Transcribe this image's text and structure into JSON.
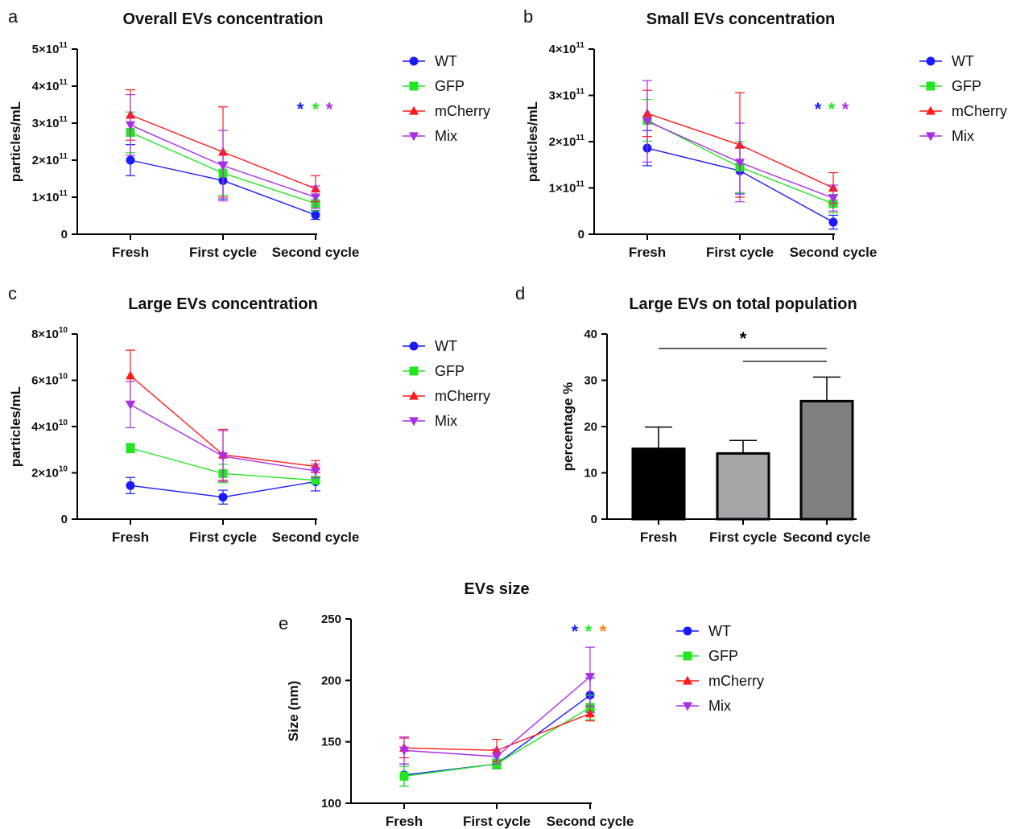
{
  "colors": {
    "WT": "#1a1aff",
    "GFP": "#22e622",
    "mCherry": "#ff1a1a",
    "Mix": "#aa2ee8",
    "star_orange": "#ff7f1a"
  },
  "chart_data": [
    {
      "panel": "a",
      "type": "line",
      "title": "Overall EVs concentration",
      "xlabel": "",
      "ylabel": "particles/mL",
      "categories": [
        "Fresh",
        "First cycle",
        "Second cycle"
      ],
      "ylim": [
        0,
        5
      ],
      "yticks": [
        {
          "v": 0,
          "base": "0",
          "exp": ""
        },
        {
          "v": 1,
          "base": "1×10",
          "exp": "11"
        },
        {
          "v": 2,
          "base": "2×10",
          "exp": "11"
        },
        {
          "v": 3,
          "base": "3×10",
          "exp": "11"
        },
        {
          "v": 4,
          "base": "4×10",
          "exp": "11"
        },
        {
          "v": 5,
          "base": "5×10",
          "exp": "11"
        }
      ],
      "series": [
        {
          "name": "WT",
          "marker": "circle",
          "values": [
            2.0,
            1.45,
            0.52
          ],
          "err": [
            0.42,
            0.5,
            0.12
          ]
        },
        {
          "name": "GFP",
          "marker": "square",
          "values": [
            2.75,
            1.65,
            0.83
          ],
          "err": [
            0.55,
            0.6,
            0.2
          ]
        },
        {
          "name": "mCherry",
          "marker": "triangle-up",
          "values": [
            3.22,
            2.22,
            1.23
          ],
          "err": [
            0.68,
            1.22,
            0.35
          ]
        },
        {
          "name": "Mix",
          "marker": "triangle-down",
          "values": [
            2.95,
            1.85,
            1.0
          ],
          "err": [
            0.82,
            0.95,
            0.3
          ]
        }
      ],
      "stars": [
        "WT",
        "GFP",
        "Mix"
      ]
    },
    {
      "panel": "b",
      "type": "line",
      "title": "Small EVs concentration",
      "xlabel": "",
      "ylabel": "particles/mL",
      "categories": [
        "Fresh",
        "First cycle",
        "Second cycle"
      ],
      "ylim": [
        0,
        4
      ],
      "yticks": [
        {
          "v": 0,
          "base": "0",
          "exp": ""
        },
        {
          "v": 1,
          "base": "1×10",
          "exp": "11"
        },
        {
          "v": 2,
          "base": "2×10",
          "exp": "11"
        },
        {
          "v": 3,
          "base": "3×10",
          "exp": "11"
        },
        {
          "v": 4,
          "base": "4×10",
          "exp": "11"
        }
      ],
      "series": [
        {
          "name": "WT",
          "marker": "circle",
          "values": [
            1.86,
            1.37,
            0.26
          ],
          "err": [
            0.38,
            0.5,
            0.15
          ]
        },
        {
          "name": "GFP",
          "marker": "square",
          "values": [
            2.46,
            1.45,
            0.66
          ],
          "err": [
            0.45,
            0.55,
            0.2
          ]
        },
        {
          "name": "mCherry",
          "marker": "triangle-up",
          "values": [
            2.61,
            1.93,
            1.0
          ],
          "err": [
            0.5,
            1.13,
            0.33
          ]
        },
        {
          "name": "Mix",
          "marker": "triangle-down",
          "values": [
            2.44,
            1.55,
            0.78
          ],
          "err": [
            0.88,
            0.85,
            0.28
          ]
        }
      ],
      "stars": [
        "WT",
        "GFP",
        "Mix"
      ]
    },
    {
      "panel": "c",
      "type": "line",
      "title": "Large EVs concentration",
      "xlabel": "",
      "ylabel": "particles/mL",
      "categories": [
        "Fresh",
        "First cycle",
        "Second cycle"
      ],
      "ylim": [
        0,
        8
      ],
      "yticks": [
        {
          "v": 0,
          "base": "0",
          "exp": ""
        },
        {
          "v": 2,
          "base": "2×10",
          "exp": "10"
        },
        {
          "v": 4,
          "base": "4×10",
          "exp": "10"
        },
        {
          "v": 6,
          "base": "6×10",
          "exp": "10"
        },
        {
          "v": 8,
          "base": "8×10",
          "exp": "10"
        }
      ],
      "series": [
        {
          "name": "WT",
          "marker": "circle",
          "values": [
            1.45,
            0.95,
            1.62
          ],
          "err": [
            0.35,
            0.3,
            0.4
          ]
        },
        {
          "name": "GFP",
          "marker": "square",
          "values": [
            3.07,
            1.97,
            1.68
          ],
          "err": [
            0.2,
            0.4,
            0.15
          ]
        },
        {
          "name": "mCherry",
          "marker": "triangle-up",
          "values": [
            6.2,
            2.78,
            2.28
          ],
          "err": [
            1.1,
            1.1,
            0.25
          ]
        },
        {
          "name": "Mix",
          "marker": "triangle-down",
          "values": [
            4.95,
            2.72,
            2.08
          ],
          "err": [
            1.0,
            1.1,
            0.3
          ]
        }
      ],
      "stars": []
    },
    {
      "panel": "d",
      "type": "bar",
      "title": "Large EVs on total population",
      "xlabel": "",
      "ylabel": "percentage %",
      "categories": [
        "Fresh",
        "First cycle",
        "Second cycle"
      ],
      "values": [
        15.2,
        14.2,
        25.5
      ],
      "err": [
        4.7,
        2.8,
        5.2
      ],
      "bar_colors": [
        "#000000",
        "#a6a6aa",
        "#808080"
      ],
      "ylim": [
        0,
        40
      ],
      "yticks": [
        {
          "v": 0,
          "base": "0",
          "exp": ""
        },
        {
          "v": 10,
          "base": "10",
          "exp": ""
        },
        {
          "v": 20,
          "base": "20",
          "exp": ""
        },
        {
          "v": 30,
          "base": "30",
          "exp": ""
        },
        {
          "v": 40,
          "base": "40",
          "exp": ""
        }
      ],
      "significance": "*"
    },
    {
      "panel": "e",
      "type": "line",
      "title": "EVs size",
      "xlabel": "",
      "ylabel": "Size (nm)",
      "categories": [
        "Fresh",
        "First cycle",
        "Second cycle"
      ],
      "ylim": [
        100,
        250
      ],
      "yticks": [
        {
          "v": 100,
          "base": "100",
          "exp": ""
        },
        {
          "v": 150,
          "base": "150",
          "exp": ""
        },
        {
          "v": 200,
          "base": "200",
          "exp": ""
        },
        {
          "v": 250,
          "base": "250",
          "exp": ""
        }
      ],
      "series": [
        {
          "name": "WT",
          "marker": "circle",
          "values": [
            123,
            132,
            188
          ],
          "err": [
            9,
            4,
            14
          ]
        },
        {
          "name": "GFP",
          "marker": "square",
          "values": [
            122,
            132,
            178
          ],
          "err": [
            8,
            4,
            10
          ]
        },
        {
          "name": "mCherry",
          "marker": "triangle-up",
          "values": [
            145,
            143,
            173
          ],
          "err": [
            8,
            9,
            6
          ]
        },
        {
          "name": "Mix",
          "marker": "triangle-down",
          "values": [
            143,
            138,
            203
          ],
          "err": [
            11,
            6,
            24
          ]
        }
      ],
      "stars": [
        "WT",
        "GFP",
        "star_orange"
      ]
    }
  ]
}
